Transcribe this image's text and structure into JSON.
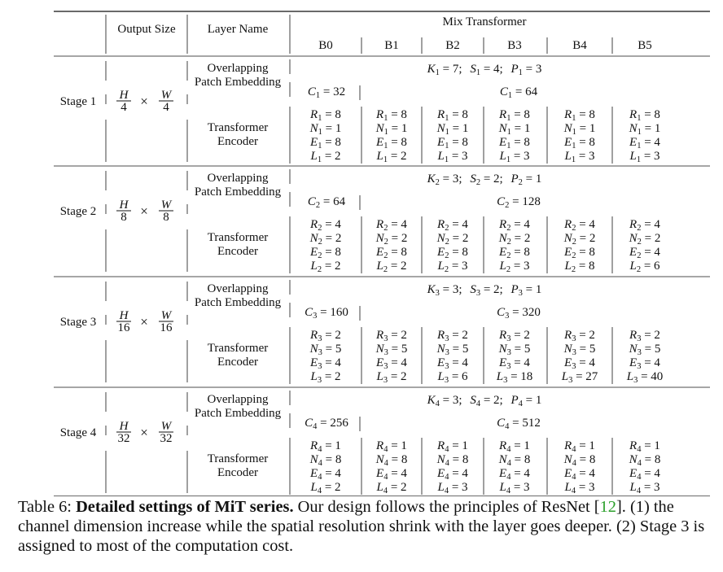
{
  "header": {
    "output_size": "Output Size",
    "layer_name": "Layer Name",
    "mix_transformer": "Mix Transformer",
    "models": [
      "B0",
      "B1",
      "B2",
      "B3",
      "B4",
      "B5"
    ]
  },
  "layer_names": {
    "overlapping": [
      "Overlapping",
      "Patch Embedding"
    ],
    "transformer": [
      "Transformer",
      "Encoder"
    ]
  },
  "stages": [
    {
      "label": "Stage 1",
      "num": "H",
      "den": "4",
      "num2": "W",
      "den2": "4",
      "sub": "1",
      "patch": {
        "K": "7",
        "S": "4",
        "P": "3"
      },
      "channels": {
        "b0": "32",
        "rest": "64"
      },
      "R": [
        "8",
        "8",
        "8",
        "8",
        "8",
        "8"
      ],
      "N": [
        "1",
        "1",
        "1",
        "1",
        "1",
        "1"
      ],
      "E": [
        "8",
        "8",
        "8",
        "8",
        "8",
        "4"
      ],
      "L": [
        "2",
        "2",
        "3",
        "3",
        "3",
        "3"
      ]
    },
    {
      "label": "Stage 2",
      "num": "H",
      "den": "8",
      "num2": "W",
      "den2": "8",
      "sub": "2",
      "patch": {
        "K": "3",
        "S": "2",
        "P": "1"
      },
      "channels": {
        "b0": "64",
        "rest": "128"
      },
      "R": [
        "4",
        "4",
        "4",
        "4",
        "4",
        "4"
      ],
      "N": [
        "2",
        "2",
        "2",
        "2",
        "2",
        "2"
      ],
      "E": [
        "8",
        "8",
        "8",
        "8",
        "8",
        "4"
      ],
      "L": [
        "2",
        "2",
        "3",
        "3",
        "8",
        "6"
      ]
    },
    {
      "label": "Stage 3",
      "num": "H",
      "den": "16",
      "num2": "W",
      "den2": "16",
      "sub": "3",
      "patch": {
        "K": "3",
        "S": "2",
        "P": "1"
      },
      "channels": {
        "b0": "160",
        "rest": "320"
      },
      "R": [
        "2",
        "2",
        "2",
        "2",
        "2",
        "2"
      ],
      "N": [
        "5",
        "5",
        "5",
        "5",
        "5",
        "5"
      ],
      "E": [
        "4",
        "4",
        "4",
        "4",
        "4",
        "4"
      ],
      "L": [
        "2",
        "2",
        "6",
        "18",
        "27",
        "40"
      ]
    },
    {
      "label": "Stage 4",
      "num": "H",
      "den": "32",
      "num2": "W",
      "den2": "32",
      "sub": "4",
      "patch": {
        "K": "3",
        "S": "2",
        "P": "1"
      },
      "channels": {
        "b0": "256",
        "rest": "512"
      },
      "R": [
        "1",
        "1",
        "1",
        "1",
        "1",
        "1"
      ],
      "N": [
        "8",
        "8",
        "8",
        "8",
        "8",
        "8"
      ],
      "E": [
        "4",
        "4",
        "4",
        "4",
        "4",
        "4"
      ],
      "L": [
        "2",
        "2",
        "3",
        "3",
        "3",
        "3"
      ]
    }
  ],
  "caption": {
    "table_label": "Table 6:",
    "bold_title": "Detailed settings of MiT series.",
    "text_before_ref": "Our design follows the principles of ResNet [",
    "ref": "12",
    "text_after_ref": "]. (1) the channel dimension increase while the spatial resolution shrink with the layer goes deeper. (2) Stage 3 is assigned to most of the computation cost."
  }
}
